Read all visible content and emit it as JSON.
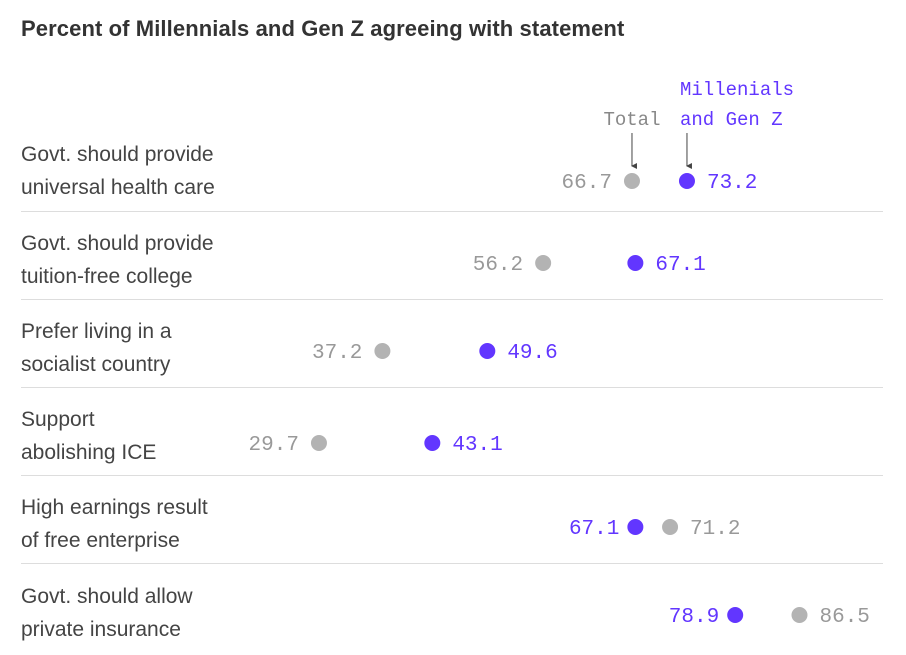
{
  "chart_data": {
    "type": "dumbbell",
    "title": "Percent of Millennials and Gen Z agreeing with statement",
    "legend": {
      "total": "Total",
      "gen_line1": "Millenials",
      "gen_line2": "and Gen Z"
    },
    "colors": {
      "total": "#b3b3b3",
      "gen": "#6236ff",
      "total_text": "#999999"
    },
    "rows": [
      {
        "label1": "Govt. should provide",
        "label2": "universal health care",
        "total": 66.7,
        "gen": 73.2
      },
      {
        "label1": "Govt. should provide",
        "label2": "tuition-free college",
        "total": 56.2,
        "gen": 67.1
      },
      {
        "label1": "Prefer living in a",
        "label2": "socialist country",
        "total": 37.2,
        "gen": 49.6
      },
      {
        "label1": "Support",
        "label2": "abolishing ICE",
        "total": 29.7,
        "gen": 43.1
      },
      {
        "label1": "High earnings result",
        "label2": "of free enterprise",
        "total": 71.2,
        "gen": 67.1
      },
      {
        "label1": "Govt. should allow",
        "label2": "private insurance",
        "total": 86.5,
        "gen": 78.9
      }
    ]
  }
}
